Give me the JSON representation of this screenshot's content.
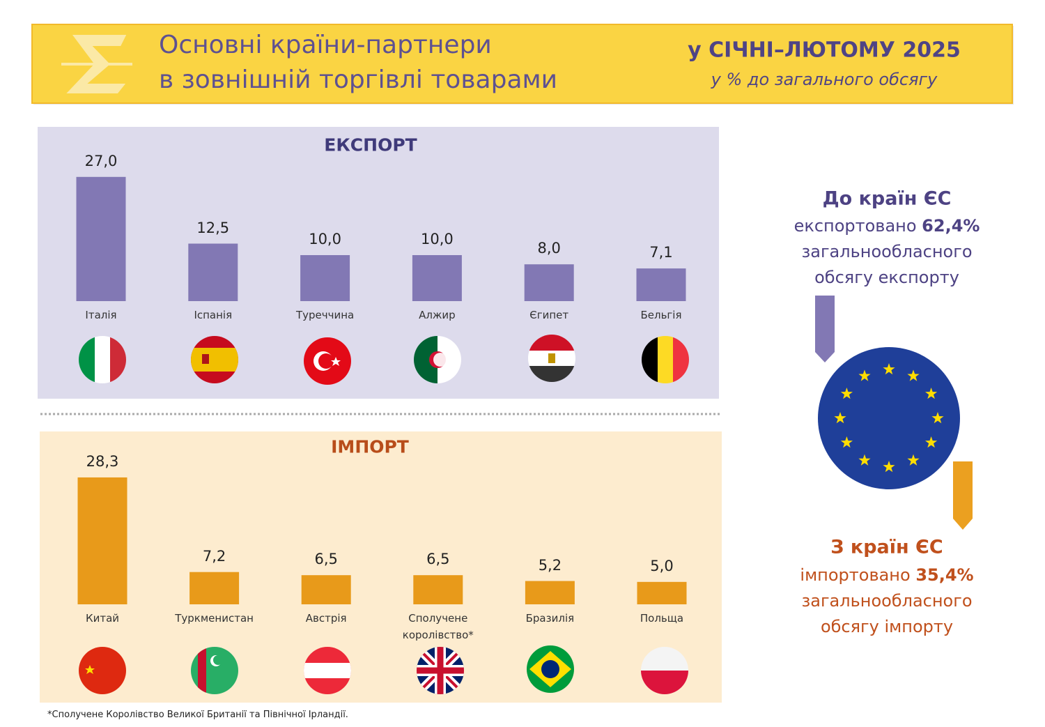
{
  "header": {
    "title_line1": "Основні країни-партнери",
    "title_line2": "в зовнішній торгівлі товарами",
    "period": "у СІЧНІ–ЛЮТОМУ 2025",
    "subtitle": "у % до загального обсягу"
  },
  "chart_data": [
    {
      "type": "bar",
      "title": "ЕКСПОРТ",
      "categories": [
        "Італія",
        "Іспанія",
        "Туреччина",
        "Алжир",
        "Єгипет",
        "Бельгія"
      ],
      "values": [
        27.0,
        12.5,
        10.0,
        10.0,
        8.0,
        7.1
      ],
      "value_labels": [
        "27,0",
        "12,5",
        "10,0",
        "10,0",
        "8,0",
        "7,1"
      ],
      "color": "#8278b4",
      "ylim": [
        0,
        30
      ]
    },
    {
      "type": "bar",
      "title": "ІМПОРТ",
      "categories": [
        "Китай",
        "Туркменистан",
        "Австрія",
        "Сполучене королівство*",
        "Бразилія",
        "Польща"
      ],
      "values": [
        28.3,
        7.2,
        6.5,
        6.5,
        5.2,
        5.0
      ],
      "value_labels": [
        "28,3",
        "7,2",
        "6,5",
        "6,5",
        "5,2",
        "5,0"
      ],
      "color": "#e89a1a",
      "ylim": [
        0,
        30
      ]
    }
  ],
  "eu_export": {
    "title": "До країн ЄС",
    "verb": "експортовано",
    "share": "62,4%",
    "line2": "загальнообласного",
    "line3": "обсягу експорту"
  },
  "eu_import": {
    "title": "З країн ЄС",
    "verb": "імпортовано",
    "share": "35,4%",
    "line2": "загальнообласного",
    "line3": "обсягу імпорту"
  },
  "footnote": "*Сполучене Королівство Великої Британії та Північної Ірландії."
}
